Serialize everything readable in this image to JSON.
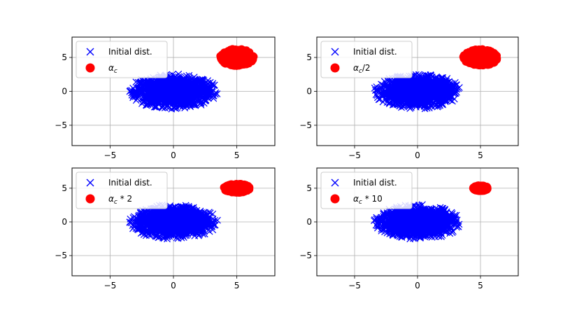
{
  "colors": {
    "initial": "#0000ff",
    "transformed": "#ff0000",
    "grid": "#b0b0b0",
    "axes": "#000000"
  },
  "chart_data": [
    {
      "type": "scatter",
      "title": "",
      "xlabel": "",
      "ylabel": "",
      "xlim": [
        -8,
        8
      ],
      "ylim": [
        -8,
        8
      ],
      "xticks": [
        -5,
        0,
        5
      ],
      "yticks": [
        -5,
        0,
        5
      ],
      "xtick_labels": [
        "−5",
        "0",
        "5"
      ],
      "ytick_labels": [
        "−5",
        "0",
        "5"
      ],
      "grid": true,
      "legend": "top-left",
      "series": [
        {
          "name": "Initial dist.",
          "marker": "x",
          "center": [
            0.0,
            0.0
          ],
          "spread": [
            3.5,
            2.6
          ],
          "points_count": 1500
        },
        {
          "name": "αc",
          "marker": "o",
          "center": [
            5.0,
            5.0
          ],
          "spread": [
            1.35,
            1.3
          ],
          "points_count": 1500
        }
      ]
    },
    {
      "type": "scatter",
      "title": "",
      "xlabel": "",
      "ylabel": "",
      "xlim": [
        -8,
        8
      ],
      "ylim": [
        -8,
        8
      ],
      "xticks": [
        -5,
        0,
        5
      ],
      "yticks": [
        -5,
        0,
        5
      ],
      "xtick_labels": [
        "−5",
        "0",
        "5"
      ],
      "ytick_labels": [
        "−5",
        "0",
        "5"
      ],
      "grid": true,
      "legend": "top-left",
      "series": [
        {
          "name": "Initial dist.",
          "marker": "x",
          "center": [
            0.0,
            0.0
          ],
          "spread": [
            3.5,
            2.6
          ],
          "points_count": 1500
        },
        {
          "name": "αc/2",
          "marker": "o",
          "center": [
            5.0,
            5.0
          ],
          "spread": [
            1.4,
            1.25
          ],
          "points_count": 1500
        }
      ]
    },
    {
      "type": "scatter",
      "title": "",
      "xlabel": "",
      "ylabel": "",
      "xlim": [
        -8,
        8
      ],
      "ylim": [
        -8,
        8
      ],
      "xticks": [
        -5,
        0,
        5
      ],
      "yticks": [
        -5,
        0,
        5
      ],
      "xtick_labels": [
        "−5",
        "0",
        "5"
      ],
      "ytick_labels": [
        "−5",
        "0",
        "5"
      ],
      "grid": true,
      "legend": "top-left",
      "series": [
        {
          "name": "Initial dist.",
          "marker": "x",
          "center": [
            0.0,
            0.0
          ],
          "spread": [
            3.5,
            2.6
          ],
          "points_count": 1500
        },
        {
          "name": "αc * 2",
          "marker": "o",
          "center": [
            5.0,
            5.0
          ],
          "spread": [
            1.05,
            0.7
          ],
          "points_count": 1500
        }
      ]
    },
    {
      "type": "scatter",
      "title": "",
      "xlabel": "",
      "ylabel": "",
      "xlim": [
        -8,
        8
      ],
      "ylim": [
        -8,
        8
      ],
      "xticks": [
        -5,
        0,
        5
      ],
      "yticks": [
        -5,
        0,
        5
      ],
      "xtick_labels": [
        "−5",
        "0",
        "5"
      ],
      "ytick_labels": [
        "−5",
        "0",
        "5"
      ],
      "grid": true,
      "legend": "top-left",
      "series": [
        {
          "name": "Initial dist.",
          "marker": "x",
          "center": [
            0.0,
            0.0
          ],
          "spread": [
            3.5,
            2.6
          ],
          "points_count": 1500
        },
        {
          "name": "αc * 10",
          "marker": "o",
          "center": [
            5.0,
            5.0
          ],
          "spread": [
            0.6,
            0.45
          ],
          "points_count": 1500
        }
      ]
    }
  ]
}
